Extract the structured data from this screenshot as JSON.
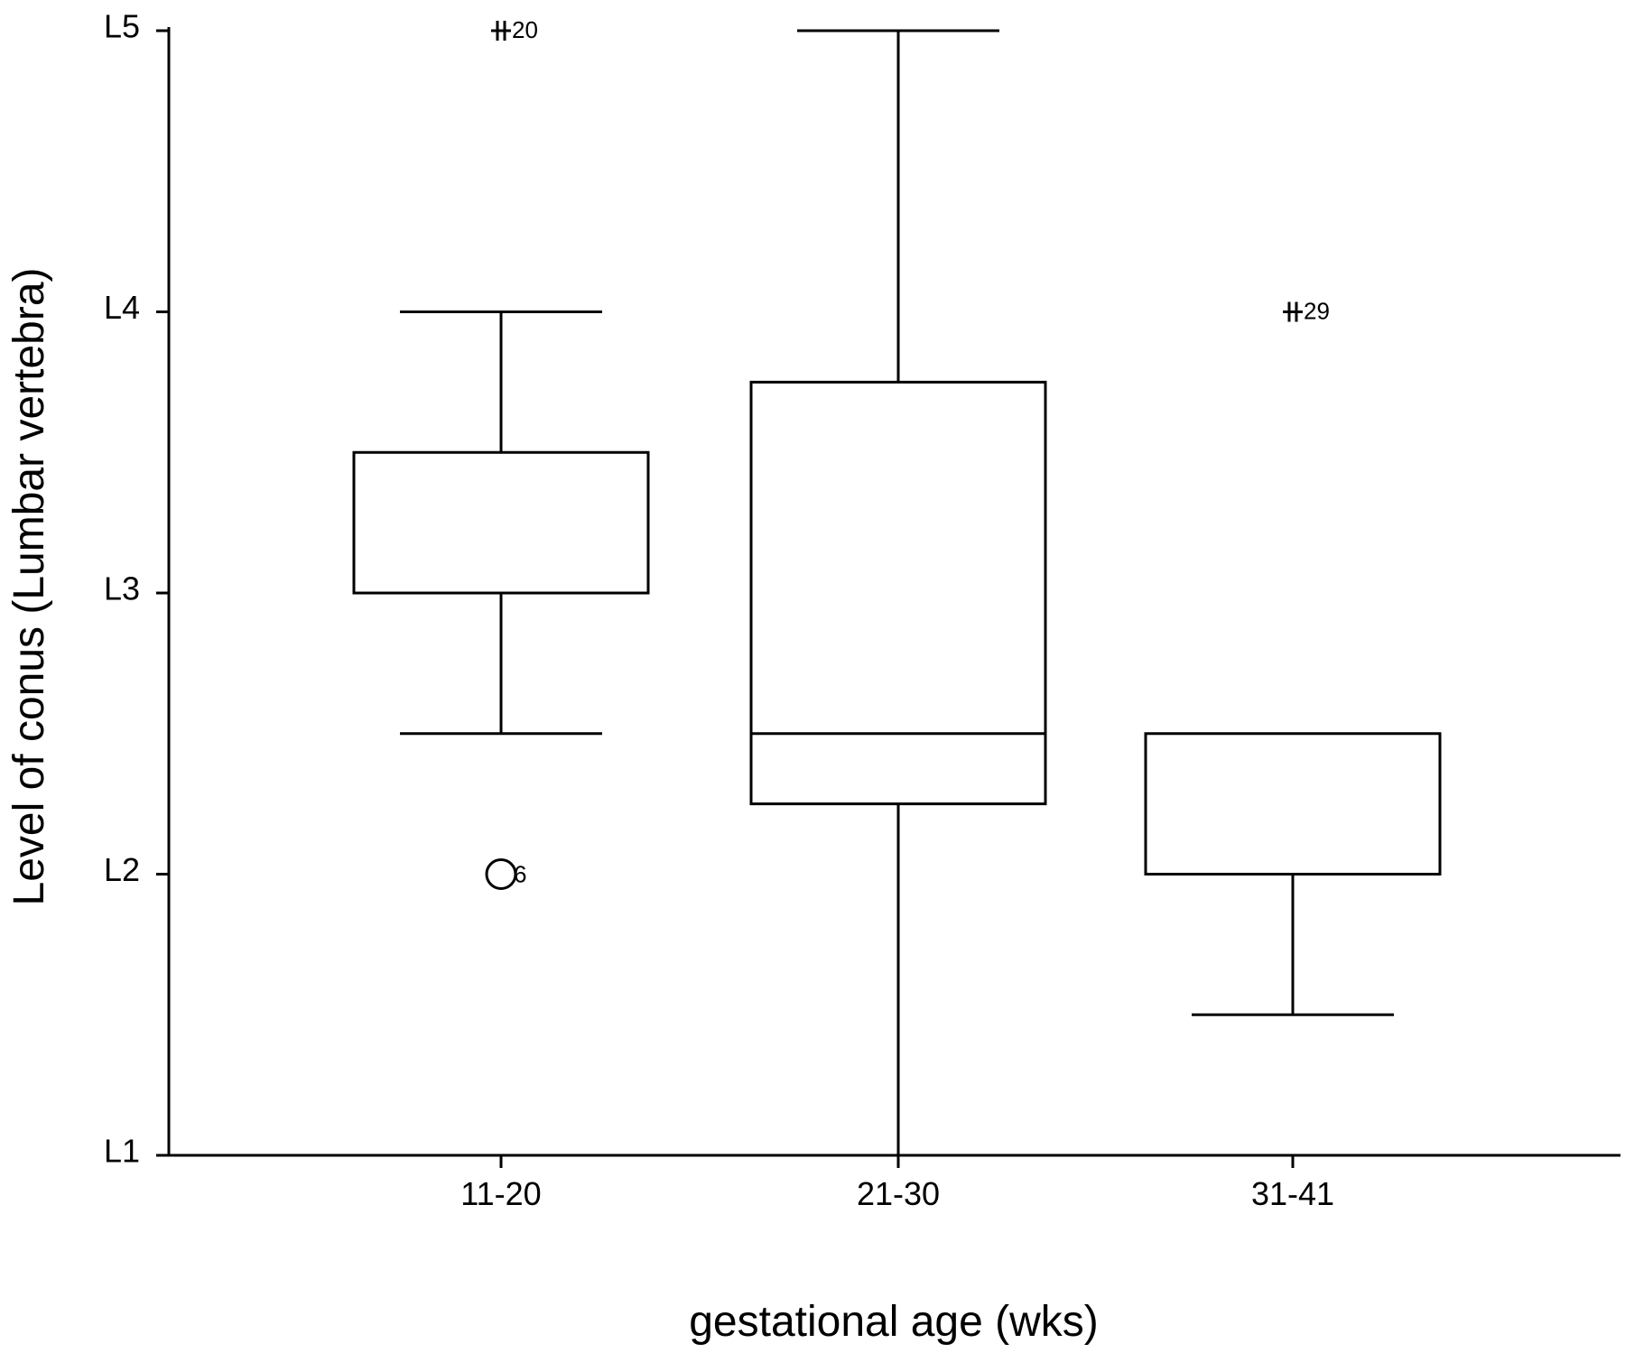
{
  "chart_data": {
    "type": "boxplot",
    "xlabel": "gestational age (wks)",
    "ylabel": "Level of conus (Lumbar vertebra)",
    "ylim": [
      1,
      5
    ],
    "y_ticks": [
      {
        "value": 1,
        "label": "L1"
      },
      {
        "value": 2,
        "label": "L2"
      },
      {
        "value": 3,
        "label": "L3"
      },
      {
        "value": 4,
        "label": "L4"
      },
      {
        "value": 5,
        "label": "L5"
      }
    ],
    "categories": [
      "11-20",
      "21-30",
      "31-41"
    ],
    "boxes": [
      {
        "category": "11-20",
        "whisker_low": 2.5,
        "q1": 3.0,
        "median": 3.0,
        "q3": 3.5,
        "whisker_high": 4.0
      },
      {
        "category": "21-30",
        "whisker_low": 1.0,
        "q1": 2.25,
        "median": 2.5,
        "q3": 3.75,
        "whisker_high": 5.0
      },
      {
        "category": "31-41",
        "whisker_low": 1.5,
        "q1": 2.0,
        "median": 2.0,
        "q3": 2.5,
        "whisker_high": 2.5
      }
    ],
    "outliers": [
      {
        "category": "11-20",
        "value": 5.0,
        "marker": "star",
        "label": "20"
      },
      {
        "category": "11-20",
        "value": 2.0,
        "marker": "circle",
        "label": "6"
      },
      {
        "category": "31-41",
        "value": 4.0,
        "marker": "star",
        "label": "29"
      }
    ],
    "grid": false,
    "colors": {
      "line": "#000000",
      "background": "#ffffff"
    }
  }
}
